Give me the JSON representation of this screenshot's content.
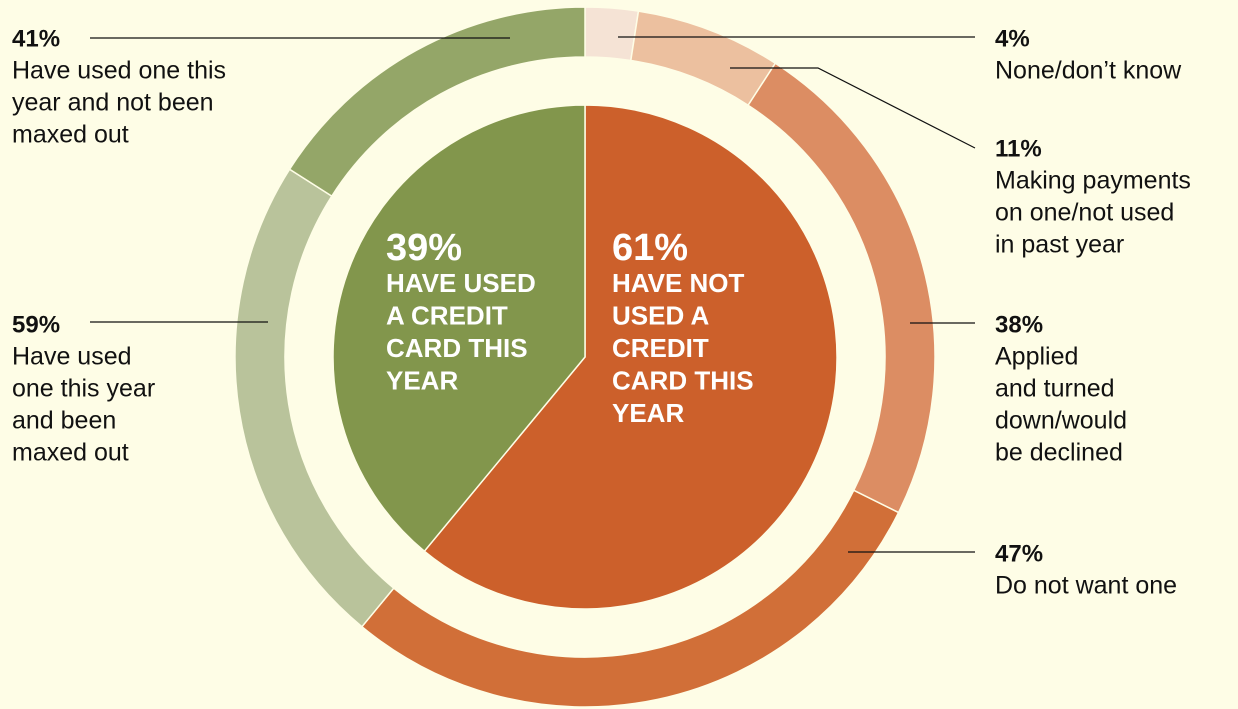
{
  "chart_data": {
    "type": "sunburst",
    "inner": {
      "categories": [
        [
          "HAVE NOT",
          "USED A",
          "CREDIT",
          "CARD THIS",
          "YEAR"
        ],
        [
          "HAVE USED",
          "A CREDIT",
          "CARD THIS",
          "YEAR"
        ]
      ],
      "values": [
        61,
        39
      ],
      "value_labels": [
        "61%",
        "39%"
      ],
      "colors": [
        "#cc602b",
        "#82964c"
      ]
    },
    "outer": [
      {
        "categories": [
          [
            "None/don’t know"
          ],
          [
            "Making payments",
            "on one/not used",
            "in past year"
          ],
          [
            "Applied",
            "and turned",
            "down/would",
            "be declined"
          ],
          [
            "Do not want one"
          ]
        ],
        "values": [
          4,
          11,
          38,
          47
        ],
        "value_labels": [
          "4%",
          "11%",
          "38%",
          "47%"
        ],
        "colors": [
          "#f5e3d5",
          "#ecc09f",
          "#dc8d63",
          "#d16f38"
        ]
      },
      {
        "categories": [
          [
            "Have used",
            "one this year",
            "and been",
            "maxed out"
          ],
          [
            "Have used one this",
            "year and not been",
            "maxed out"
          ]
        ],
        "values": [
          59,
          41
        ],
        "value_labels": [
          "59%",
          "41%"
        ],
        "colors": [
          "#b9c39b",
          "#94a668"
        ]
      }
    ]
  }
}
